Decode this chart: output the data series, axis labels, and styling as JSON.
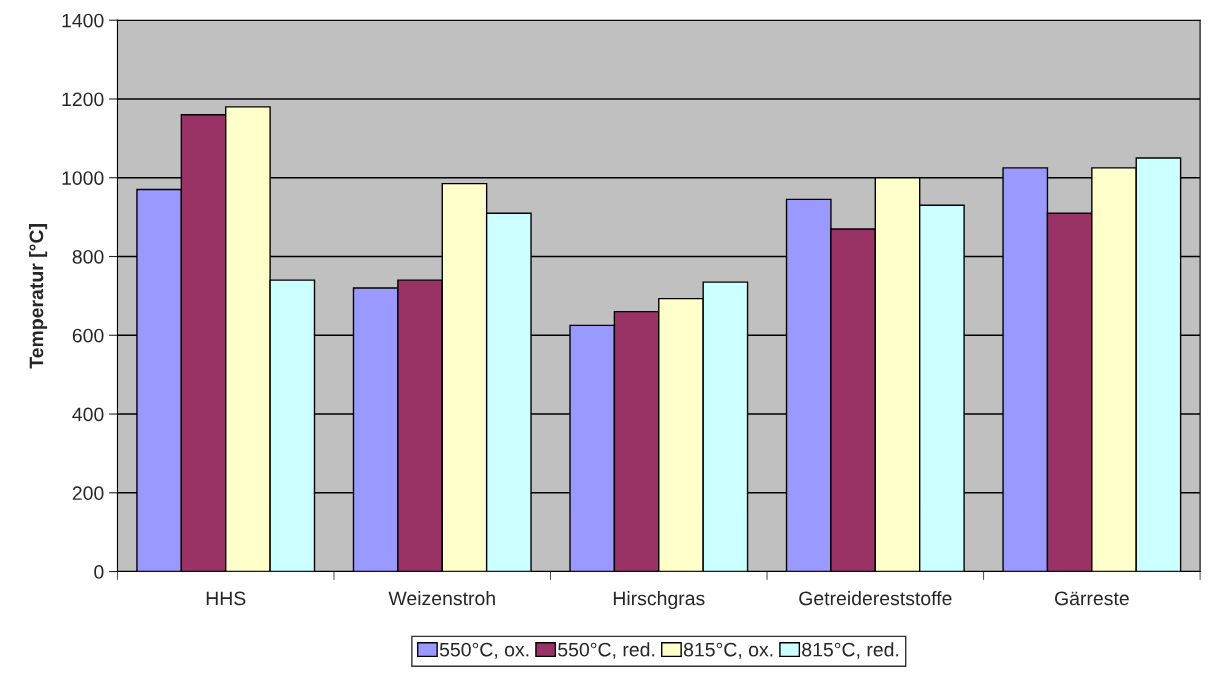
{
  "chart_data": {
    "type": "bar",
    "ylabel": "Temperatur [°C]",
    "categories": [
      "HHS",
      "Weizenstroh",
      "Hirschgras",
      "Getreidereststoffe",
      "Gärreste"
    ],
    "series": [
      {
        "name": "550°C, ox.",
        "color": "#9999ff",
        "values": [
          970,
          720,
          625,
          945,
          1025
        ]
      },
      {
        "name": "550°C, red.",
        "color": "#993366",
        "values": [
          1160,
          740,
          660,
          870,
          910
        ]
      },
      {
        "name": "815°C, ox.",
        "color": "#ffffcc",
        "values": [
          1180,
          985,
          693,
          1000,
          1025
        ]
      },
      {
        "name": "815°C, red.",
        "color": "#ccffff",
        "values": [
          740,
          910,
          735,
          930,
          1050
        ]
      }
    ],
    "ylim": [
      0,
      1400
    ],
    "yticks": [
      0,
      200,
      400,
      600,
      800,
      1000,
      1200,
      1400
    ],
    "grid": "y",
    "legend": "bottom"
  }
}
